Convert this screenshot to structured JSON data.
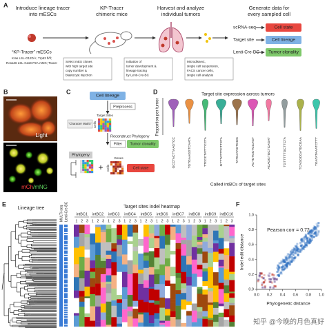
{
  "panel_a": {
    "label": "A",
    "steps": [
      [
        "Introduce lineage tracer",
        "into mESCs"
      ],
      [
        "KP-Tracer",
        "chimeric mice"
      ],
      [
        "Harvest and analyze",
        "individual tumors"
      ],
      [
        "Generate data for",
        "every sampled cell"
      ]
    ],
    "mescs": {
      "title": "“KP-Tracer” mESCs",
      "genotype": [
        "Kras LSL-G12D/+; Trp53 fl/fl;",
        "Rosa26 LSL-Cas9-P2A-mNG; Tracer"
      ]
    },
    "notes": [
      [
        "Select mES clones",
        "with high target site",
        "copy number &",
        "blastocyst injection"
      ],
      [
        "Initiation of",
        "tumor development &",
        "lineage tracing",
        "by Lenti-Cre-BC"
      ],
      [
        "Microdissect,",
        "single cell suspension,",
        "FACS cancer cells,",
        "single cell analysis"
      ]
    ],
    "outputs": [
      {
        "assay": "scRNA-seq",
        "result": "Cell state"
      },
      {
        "assay": "Target site",
        "result": "Cell lineage"
      },
      {
        "assay": "Lenti-Cre-BC",
        "result": "Tumor clonality"
      }
    ]
  },
  "panel_b": {
    "label": "B",
    "top": "Light",
    "bottom_red": "mCh",
    "bottom_green": "/mNG"
  },
  "panel_c": {
    "label": "C",
    "lineage": "Cell lineage",
    "preprocess": "Preprocess",
    "target_sites": "Target Sites",
    "cells": "Cells",
    "matrix": "“Character Matrix”",
    "reconstruct": "Reconstruct Phylogeny",
    "filter": "Filter",
    "clonality": "Tumor clonality",
    "phylogeny": "Phylogeny",
    "plus": "+",
    "genes": "Genes",
    "state": "Cell state"
  },
  "panel_d": {
    "label": "D",
    "title": "Target site expression across tumors",
    "y_label": "Proportion per tumor",
    "x_label": "Called intBCs of target sites",
    "categories": [
      "GCCTACTTAAGTCC",
      "TGTGAAGGTCAATA",
      "TTCCCTATTTCCTA",
      "GTTTATTTCTTCTA",
      "TATGATAGTCGG",
      "ACTCTGCTCCAGT",
      "ACAGGTGCTCAGAT",
      "TGTTTTTGCTTCTA",
      "TCAGGCGATGCGAA",
      "TGATATAAATCTTT"
    ],
    "colors": [
      "#8e44ad",
      "#e67e22",
      "#27ae60",
      "#16a085",
      "#8b5a2b",
      "#d63aa8",
      "#f06292",
      "#7f8c8d",
      "#9ca52b",
      "#1abc9c"
    ]
  },
  "panel_e": {
    "label": "E",
    "tree_label": "Lineage tree",
    "tracks": [
      "MULTI-seq",
      "Lenti-Cre-BC"
    ],
    "title": "Target sites indel heatmap",
    "intbcs": [
      "intBC1",
      "intBC2",
      "intBC3",
      "intBC4",
      "intBC5",
      "intBC6",
      "intBC7",
      "intBC8",
      "intBC9",
      "intBC10"
    ],
    "sites": [
      "1",
      "2",
      "3"
    ]
  },
  "panel_f": {
    "label": "F",
    "annotation": "Pearson corr = 0.72",
    "x_label": "Phylogenetic distance",
    "y_label": "Indel edit distance",
    "xlim": [
      0,
      1
    ],
    "ylim": [
      0,
      1
    ],
    "xticks": [
      {
        "value": 0,
        "label": "0.0"
      },
      {
        "value": 0.2,
        "label": "0.2"
      },
      {
        "value": 0.4,
        "label": "0.4"
      },
      {
        "value": 0.6,
        "label": "0.6"
      },
      {
        "value": 0.8,
        "label": "0.8"
      },
      {
        "value": 1,
        "label": "1.0"
      }
    ],
    "yticks": [
      {
        "value": 0,
        "label": "0.0"
      },
      {
        "value": 0.2,
        "label": "0.2"
      },
      {
        "value": 0.4,
        "label": "0.4"
      },
      {
        "value": 0.6,
        "label": "0.6"
      },
      {
        "value": 0.8,
        "label": "0.8"
      },
      {
        "value": 1,
        "label": "1.0"
      }
    ]
  },
  "watermark": "知乎 @今晚的月色真好"
}
